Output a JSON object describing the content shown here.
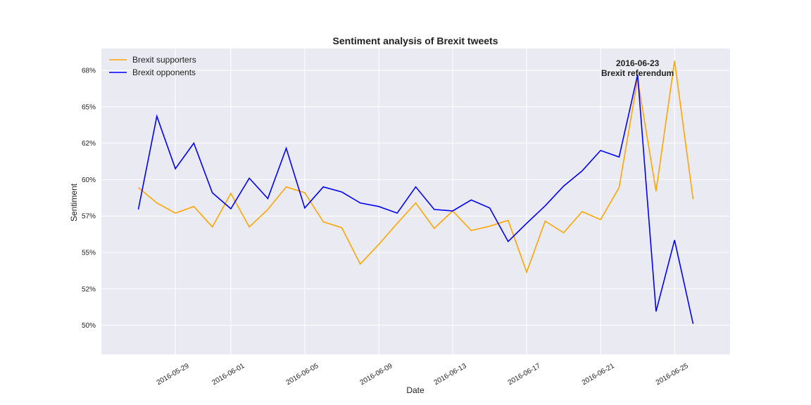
{
  "chart_data": {
    "type": "line",
    "title": "Sentiment analysis of Brexit tweets",
    "xlabel": "Date",
    "ylabel": "Sentiment",
    "x": [
      "2016-05-27",
      "2016-05-28",
      "2016-05-29",
      "2016-05-30",
      "2016-05-31",
      "2016-06-01",
      "2016-06-02",
      "2016-06-03",
      "2016-06-04",
      "2016-06-05",
      "2016-06-06",
      "2016-06-07",
      "2016-06-08",
      "2016-06-09",
      "2016-06-10",
      "2016-06-11",
      "2016-06-12",
      "2016-06-13",
      "2016-06-14",
      "2016-06-15",
      "2016-06-16",
      "2016-06-17",
      "2016-06-18",
      "2016-06-19",
      "2016-06-20",
      "2016-06-21",
      "2016-06-22",
      "2016-06-23",
      "2016-06-24",
      "2016-06-25",
      "2016-06-26"
    ],
    "series": [
      {
        "name": "Brexit supporters",
        "color": "#FFA500",
        "values": [
          0.5945,
          0.584,
          0.577,
          0.5815,
          0.5675,
          0.5905,
          0.5675,
          0.5795,
          0.595,
          0.591,
          0.571,
          0.567,
          0.542,
          0.5555,
          0.57,
          0.584,
          0.5665,
          0.5785,
          0.565,
          0.568,
          0.572,
          0.5365,
          0.5715,
          0.5635,
          0.578,
          0.5725,
          0.5945,
          0.669,
          0.592,
          0.6815,
          0.5865
        ]
      },
      {
        "name": "Brexit opponents",
        "color": "#0000FF",
        "values": [
          0.5795,
          0.6435,
          0.6075,
          0.625,
          0.591,
          0.58,
          0.601,
          0.587,
          0.6215,
          0.5805,
          0.595,
          0.5915,
          0.584,
          0.5815,
          0.577,
          0.595,
          0.5795,
          0.5785,
          0.586,
          0.5805,
          0.5575,
          0.57,
          0.582,
          0.5955,
          0.606,
          0.62,
          0.6155,
          0.672,
          0.5095,
          0.5585,
          0.501
        ]
      }
    ],
    "yticks": [
      0.5,
      0.525,
      0.55,
      0.575,
      0.6,
      0.625,
      0.65,
      0.675
    ],
    "ytick_labels": [
      "50%",
      "52%",
      "55%",
      "57%",
      "60%",
      "62%",
      "65%",
      "68%"
    ],
    "ylim": [
      0.48,
      0.69
    ],
    "xticks": [
      "2016-05-29",
      "2016-06-01",
      "2016-06-05",
      "2016-06-09",
      "2016-06-13",
      "2016-06-17",
      "2016-06-21",
      "2016-06-25"
    ],
    "xlim": [
      "2016-05-25",
      "2016-06-28"
    ],
    "grid": true,
    "legend_position": "top-left",
    "annotation": {
      "date": "2016-06-23",
      "lines": [
        "2016-06-23",
        "Brexit referendum"
      ]
    }
  }
}
